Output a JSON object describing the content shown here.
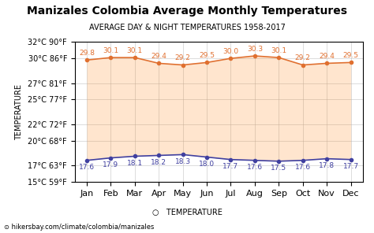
{
  "chart_data": {
    "type": "line",
    "title": "Manizales Colombia Average Monthly Temperatures",
    "subtitle": "AVERAGE DAY & NIGHT TEMPERATURES 1958-2017",
    "y_label": "TEMPERATURE",
    "categories": [
      "Jan",
      "Feb",
      "Mar",
      "Apr",
      "May",
      "Jun",
      "Jul",
      "Aug",
      "Sep",
      "Oct",
      "Nov",
      "Dec"
    ],
    "series": [
      {
        "color": "#e07030",
        "values": [
          29.8,
          30.1,
          30.1,
          29.4,
          29.2,
          29.5,
          30.0,
          30.3,
          30.1,
          29.2,
          29.4,
          29.5
        ]
      },
      {
        "color": "#4040a0",
        "values": [
          17.6,
          17.9,
          18.1,
          18.2,
          18.3,
          18.0,
          17.7,
          17.6,
          17.5,
          17.6,
          17.8,
          17.7
        ]
      }
    ],
    "ylim": [
      15,
      32
    ],
    "yticks": [
      {
        "value": 15,
        "label": "15°C 59°F"
      },
      {
        "value": 17,
        "label": "17°C 63°F"
      },
      {
        "value": 20,
        "label": "20°C 68°F"
      },
      {
        "value": 22,
        "label": "22°C 72°F"
      },
      {
        "value": 25,
        "label": "25°C 77°F"
      },
      {
        "value": 27,
        "label": "27°C 81°F"
      },
      {
        "value": 30,
        "label": "30°C 86°F"
      },
      {
        "value": 32,
        "label": "32°C 90°F"
      }
    ],
    "grid": true,
    "data_labels": true,
    "annotations": [
      "○   TEMPERATURE",
      "⊙ hikersbay.com/climate/colombia/manizales"
    ]
  }
}
